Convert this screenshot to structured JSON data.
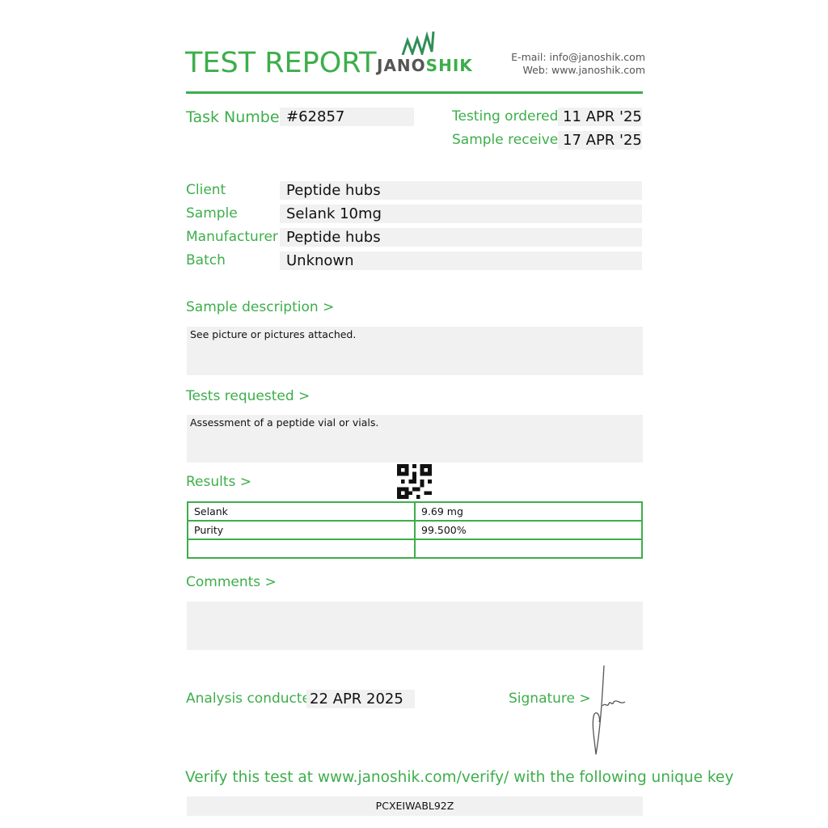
{
  "header": {
    "title": "TEST REPORT",
    "logo_text": "JANOSHIK",
    "email": "E-mail: info@janoshik.com",
    "web": "Web: www.janoshik.com"
  },
  "task": {
    "label": "Task Number",
    "value": "#62857"
  },
  "dates": {
    "ordered_label": "Testing ordered  >",
    "ordered": "11 APR '25",
    "received_label": "Sample received >",
    "received": "17 APR '25"
  },
  "fields": [
    {
      "label": "Client",
      "value": "Peptide hubs"
    },
    {
      "label": "Sample",
      "value": "Selank 10mg"
    },
    {
      "label": "Manufacturer",
      "value": "Peptide hubs"
    },
    {
      "label": "Batch",
      "value": "Unknown"
    }
  ],
  "description": {
    "label": "Sample description >",
    "text": "See picture or pictures attached."
  },
  "tests": {
    "label": "Tests requested >",
    "text": "Assessment of a peptide vial or vials."
  },
  "results": {
    "label": "Results >",
    "rows": [
      [
        "Selank",
        "9.69 mg"
      ],
      [
        "Purity",
        "99.500%"
      ],
      [
        "",
        ""
      ]
    ]
  },
  "comments": {
    "label": "Comments >",
    "text": ""
  },
  "analysis": {
    "label": "Analysis conducted >",
    "date": "22 APR 2025"
  },
  "signature": {
    "label": "Signature >"
  },
  "verify": {
    "text": "Verify this test at www.janoshik.com/verify/ with the following unique key",
    "key": "PCXEIWABL92Z"
  },
  "colors": {
    "accent": "#3dae4b",
    "box": "#f1f1f1"
  }
}
